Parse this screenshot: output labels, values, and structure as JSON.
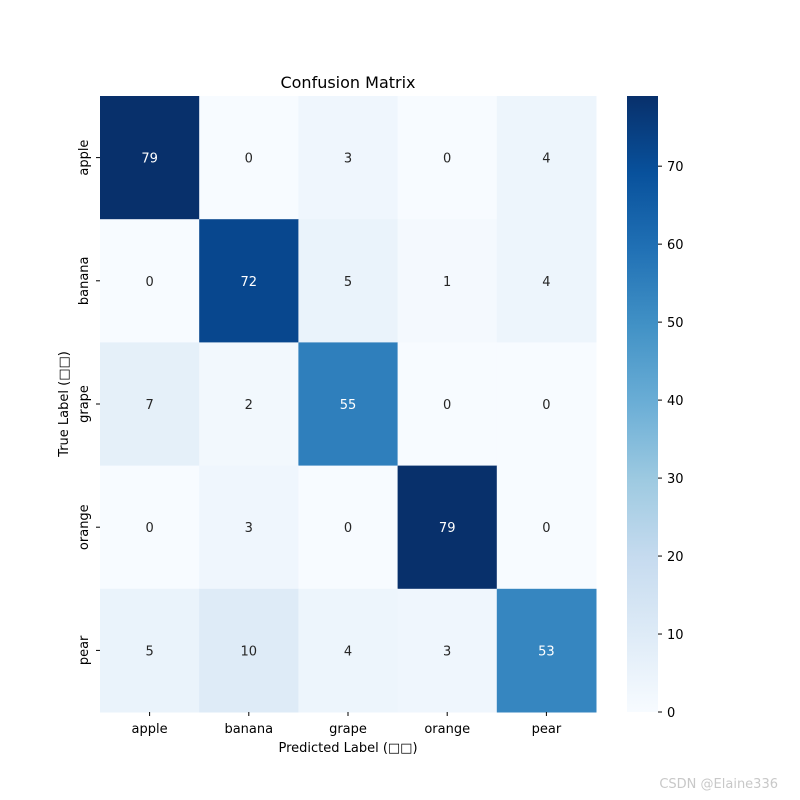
{
  "chart_data": {
    "type": "heatmap",
    "title": "Confusion Matrix",
    "xlabel": "Predicted Label (□□)",
    "ylabel": "True Label (□□)",
    "x_categories": [
      "apple",
      "banana",
      "grape",
      "orange",
      "pear"
    ],
    "y_categories": [
      "apple",
      "banana",
      "grape",
      "orange",
      "pear"
    ],
    "values": [
      [
        79,
        0,
        3,
        0,
        4
      ],
      [
        0,
        72,
        5,
        1,
        4
      ],
      [
        7,
        2,
        55,
        0,
        0
      ],
      [
        0,
        3,
        0,
        79,
        0
      ],
      [
        5,
        10,
        4,
        3,
        53
      ]
    ],
    "colormap": "Blues",
    "color_stops": [
      "#f7fbff",
      "#deebf7",
      "#c6dbef",
      "#9ecae1",
      "#6baed6",
      "#4292c6",
      "#2171b5",
      "#08519c",
      "#08306b"
    ],
    "vmin": 0,
    "vmax": 79,
    "colorbar_ticks": [
      "0",
      "10",
      "20",
      "30",
      "40",
      "50",
      "60",
      "70"
    ]
  },
  "watermark": "CSDN @Elaine336"
}
